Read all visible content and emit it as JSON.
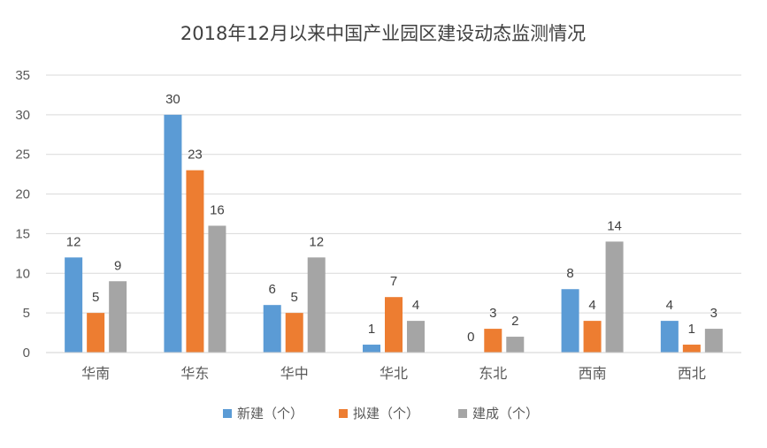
{
  "chart_data": {
    "type": "bar",
    "title": "2018年12月以来中国产业园区建设动态监测情况",
    "categories": [
      "华南",
      "华东",
      "华中",
      "华北",
      "东北",
      "西南",
      "西北"
    ],
    "series": [
      {
        "name": "新建（个）",
        "color": "#5b9bd5",
        "values": [
          12,
          30,
          6,
          1,
          0,
          8,
          4
        ]
      },
      {
        "name": "拟建（个）",
        "color": "#ed7d31",
        "values": [
          5,
          23,
          5,
          7,
          3,
          4,
          1
        ]
      },
      {
        "name": "建成（个）",
        "color": "#a5a5a5",
        "values": [
          9,
          16,
          12,
          4,
          2,
          14,
          3
        ]
      }
    ],
    "ylim": [
      0,
      35
    ],
    "yticks": [
      0,
      5,
      10,
      15,
      20,
      25,
      30,
      35
    ],
    "grid": true,
    "legend": "bottom",
    "data_labels": true
  }
}
